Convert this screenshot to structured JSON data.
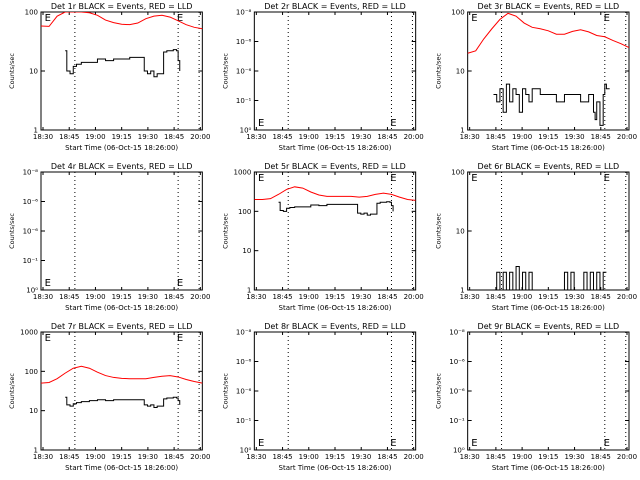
{
  "chart_data": [
    {
      "type": "line",
      "title": "Det 1r BLACK = Events, RED = LLD",
      "xlabel": "Start Time (06-Oct-15 18:26:00)",
      "ylabel": "Counts/sec",
      "y_scale": "log",
      "ylim": [
        1,
        100
      ],
      "y_ticks": [
        "1",
        "10",
        "100"
      ],
      "x_ticks": [
        "18:30",
        "18:45",
        "19:00",
        "19:15",
        "19:30",
        "18:45",
        "20:00"
      ],
      "xlim": [
        0,
        100
      ],
      "vertical_dotted_lines_x": [
        21,
        85,
        98
      ],
      "e_markers": [
        {
          "x": 1,
          "label": "E"
        },
        {
          "x": 83,
          "label": "E"
        }
      ],
      "series": [
        {
          "color": "#ff0000",
          "x": [
            0,
            5,
            10,
            15,
            20,
            25,
            30,
            35,
            40,
            45,
            50,
            55,
            60,
            65,
            70,
            75,
            80,
            85,
            90,
            95,
            100
          ],
          "values": [
            58,
            57,
            85,
            100,
            100,
            100,
            97,
            88,
            73,
            66,
            62,
            61,
            65,
            77,
            85,
            88,
            82,
            71,
            61,
            55,
            52
          ]
        },
        {
          "color": "#000000",
          "x": [
            15,
            16,
            18,
            20,
            22,
            25,
            30,
            35,
            40,
            45,
            50,
            55,
            60,
            63,
            64,
            66,
            68,
            70,
            72,
            74,
            76,
            78,
            80,
            82,
            84,
            85,
            86
          ],
          "values": [
            22,
            10,
            9,
            12,
            13,
            14,
            14,
            16,
            15,
            16,
            16,
            17,
            17,
            17,
            10,
            9,
            10,
            8,
            9,
            9,
            21,
            22,
            22,
            23,
            22,
            15,
            10
          ]
        }
      ]
    },
    {
      "type": "line",
      "title": "Det 2r BLACK = Events, RED = LLD",
      "xlabel": "Start Time (06-Oct-15 18:26:00)",
      "ylabel": "Counts/sec",
      "y_scale": "log",
      "ylim": [
        1,
        1e-08
      ],
      "y_ticks": [
        "10⁰",
        "10⁻¹",
        "10⁻⁶",
        "10⁻⁶",
        "10⁻⁸"
      ],
      "x_ticks": [
        "18:30",
        "18:45",
        "19:00",
        "19:15",
        "19:30",
        "18:45",
        "20:00"
      ],
      "xlim": [
        0,
        100
      ],
      "vertical_dotted_lines_x": [
        21,
        85,
        98
      ],
      "e_markers": [
        {
          "x": 1,
          "label": "E"
        },
        {
          "x": 83,
          "label": "E"
        }
      ],
      "series": []
    },
    {
      "type": "line",
      "title": "Det 3r BLACK = Events, RED = LLD",
      "xlabel": "Start Time (06-Oct-15 18:26:00)",
      "ylabel": "Counts/sec",
      "y_scale": "log",
      "ylim": [
        1,
        100
      ],
      "y_ticks": [
        "1",
        "10",
        "100"
      ],
      "x_ticks": [
        "18:30",
        "18:45",
        "19:00",
        "19:15",
        "19:30",
        "18:45",
        "20:00"
      ],
      "xlim": [
        0,
        100
      ],
      "vertical_dotted_lines_x": [
        21,
        85,
        98
      ],
      "e_markers": [
        {
          "x": 1,
          "label": "E"
        },
        {
          "x": 83,
          "label": "E"
        }
      ],
      "series": [
        {
          "color": "#ff0000",
          "x": [
            0,
            5,
            10,
            15,
            20,
            25,
            30,
            35,
            40,
            45,
            50,
            55,
            60,
            65,
            70,
            75,
            80,
            85,
            90,
            95,
            100
          ],
          "values": [
            20,
            22,
            35,
            52,
            75,
            95,
            85,
            65,
            55,
            52,
            48,
            42,
            42,
            47,
            50,
            46,
            40,
            38,
            33,
            29,
            25
          ]
        },
        {
          "color": "#000000",
          "x": [
            16,
            18,
            20,
            22,
            24,
            26,
            28,
            30,
            32,
            34,
            36,
            38,
            40,
            45,
            50,
            55,
            60,
            65,
            70,
            75,
            78,
            79,
            80,
            82,
            84,
            85,
            86,
            88
          ],
          "values": [
            4,
            3,
            5,
            2,
            6,
            3,
            5,
            4,
            2,
            5,
            4,
            3,
            5,
            4,
            4,
            3,
            4,
            4,
            3,
            4,
            2,
            1.5,
            3,
            1.2,
            4,
            6,
            5,
            5
          ]
        }
      ]
    },
    {
      "type": "line",
      "title": "Det 4r BLACK = Events, RED = LLD",
      "xlabel": "Start Time (06-Oct-15 18:26:00)",
      "ylabel": "Counts/sec",
      "y_scale": "log",
      "ylim": [
        1,
        1e-08
      ],
      "y_ticks": [
        "10⁰",
        "10⁻¹",
        "10⁻⁶",
        "10⁻⁶",
        "10⁻⁸"
      ],
      "x_ticks": [
        "18:30",
        "18:45",
        "19:00",
        "19:15",
        "19:30",
        "18:45",
        "20:00"
      ],
      "xlim": [
        0,
        100
      ],
      "vertical_dotted_lines_x": [
        21,
        85,
        98
      ],
      "e_markers": [
        {
          "x": 1,
          "label": "E"
        },
        {
          "x": 83,
          "label": "E"
        }
      ],
      "series": []
    },
    {
      "type": "line",
      "title": "Det 5r BLACK = Events, RED = LLD",
      "xlabel": "Start Time (06-Oct-15 18:26:00)",
      "ylabel": "Counts/sec",
      "y_scale": "log",
      "ylim": [
        1,
        1000
      ],
      "y_ticks": [
        "1",
        "10",
        "100",
        "1000"
      ],
      "x_ticks": [
        "18:30",
        "18:45",
        "19:00",
        "19:15",
        "19:30",
        "18:45",
        "20:00"
      ],
      "xlim": [
        0,
        100
      ],
      "vertical_dotted_lines_x": [
        21,
        85,
        98
      ],
      "e_markers": [
        {
          "x": 1,
          "label": "E"
        },
        {
          "x": 83,
          "label": "E"
        }
      ],
      "series": [
        {
          "color": "#ff0000",
          "x": [
            0,
            5,
            10,
            15,
            20,
            25,
            30,
            35,
            40,
            45,
            50,
            55,
            60,
            65,
            70,
            75,
            80,
            85,
            90,
            95,
            100
          ],
          "values": [
            200,
            200,
            210,
            270,
            360,
            420,
            390,
            310,
            260,
            240,
            240,
            240,
            240,
            230,
            240,
            270,
            290,
            270,
            230,
            200,
            190
          ]
        },
        {
          "color": "#000000",
          "x": [
            15,
            16,
            18,
            20,
            22,
            25,
            30,
            35,
            40,
            45,
            50,
            55,
            60,
            63,
            64,
            66,
            68,
            70,
            72,
            74,
            76,
            78,
            80,
            82,
            84,
            85,
            86
          ],
          "values": [
            170,
            105,
            100,
            120,
            125,
            130,
            130,
            145,
            140,
            150,
            150,
            150,
            150,
            150,
            90,
            85,
            90,
            80,
            85,
            85,
            160,
            170,
            170,
            175,
            170,
            140,
            100
          ]
        }
      ]
    },
    {
      "type": "line",
      "title": "Det 6r BLACK = Events, RED = LLD",
      "xlabel": "Start Time (06-Oct-15 18:26:00)",
      "ylabel": "Counts/sec",
      "y_scale": "log",
      "ylim": [
        1,
        100
      ],
      "y_ticks": [
        "1",
        "10",
        "100"
      ],
      "x_ticks": [
        "18:30",
        "18:45",
        "19:00",
        "19:15",
        "19:30",
        "18:45",
        "20:00"
      ],
      "xlim": [
        0,
        100
      ],
      "vertical_dotted_lines_x": [
        21,
        85,
        98
      ],
      "e_markers": [
        {
          "x": 1,
          "label": "E"
        },
        {
          "x": 83,
          "label": "E"
        }
      ],
      "series": [
        {
          "color": "#000000",
          "x": [
            16,
            18,
            20,
            22,
            24,
            26,
            28,
            30,
            32,
            34,
            36,
            38,
            40,
            42,
            45,
            50,
            55,
            58,
            60,
            62,
            64,
            66,
            70,
            72,
            74,
            76,
            78,
            80,
            82,
            84,
            86
          ],
          "values": [
            1,
            2,
            1,
            2,
            1,
            2,
            1,
            2.5,
            1,
            2,
            1,
            2,
            1,
            1,
            1,
            1,
            1,
            1,
            2,
            1,
            2,
            1,
            1,
            2,
            1,
            2,
            1,
            2,
            1,
            2,
            2
          ]
        }
      ]
    },
    {
      "type": "line",
      "title": "Det 7r BLACK = Events, RED = LLD",
      "xlabel": "Start Time (06-Oct-15 18:26:00)",
      "ylabel": "Counts/sec",
      "y_scale": "log",
      "ylim": [
        1,
        1000
      ],
      "y_ticks": [
        "1",
        "10",
        "100",
        "1000"
      ],
      "x_ticks": [
        "18:30",
        "18:45",
        "19:00",
        "19:15",
        "19:30",
        "18:45",
        "20:00"
      ],
      "xlim": [
        0,
        100
      ],
      "vertical_dotted_lines_x": [
        21,
        85,
        98
      ],
      "e_markers": [
        {
          "x": 1,
          "label": "E"
        },
        {
          "x": 83,
          "label": "E"
        }
      ],
      "series": [
        {
          "color": "#ff0000",
          "x": [
            0,
            5,
            10,
            15,
            20,
            25,
            30,
            35,
            40,
            45,
            50,
            55,
            60,
            65,
            70,
            75,
            80,
            85,
            90,
            95,
            100
          ],
          "values": [
            50,
            52,
            65,
            90,
            120,
            135,
            120,
            95,
            78,
            70,
            66,
            65,
            65,
            65,
            70,
            75,
            78,
            72,
            62,
            55,
            50
          ]
        },
        {
          "color": "#000000",
          "x": [
            15,
            16,
            18,
            20,
            22,
            25,
            30,
            35,
            40,
            45,
            50,
            55,
            60,
            63,
            64,
            66,
            68,
            70,
            72,
            74,
            76,
            78,
            80,
            82,
            84,
            85,
            86
          ],
          "values": [
            22,
            14,
            13,
            15,
            16,
            17,
            18,
            19,
            18,
            19,
            19,
            19,
            19,
            19,
            14,
            13,
            14,
            12,
            13,
            13,
            20,
            21,
            21,
            22,
            21,
            18,
            14
          ]
        }
      ]
    },
    {
      "type": "line",
      "title": "Det 8r BLACK = Events, RED = LLD",
      "xlabel": "Start Time (06-Oct-15 18:26:00)",
      "ylabel": "Counts/sec",
      "y_scale": "log",
      "ylim": [
        1,
        1e-08
      ],
      "y_ticks": [
        "10⁰",
        "10⁻¹",
        "10⁻⁶",
        "10⁻⁶",
        "10⁻⁸"
      ],
      "x_ticks": [
        "18:30",
        "18:45",
        "19:00",
        "19:15",
        "19:30",
        "18:45",
        "20:00"
      ],
      "xlim": [
        0,
        100
      ],
      "vertical_dotted_lines_x": [
        21,
        85,
        98
      ],
      "e_markers": [
        {
          "x": 1,
          "label": "E"
        },
        {
          "x": 83,
          "label": "E"
        }
      ],
      "series": []
    },
    {
      "type": "line",
      "title": "Det 9r BLACK = Events, RED = LLD",
      "xlabel": "Start Time (06-Oct-15 18:26:00)",
      "ylabel": "Counts/sec",
      "y_scale": "log",
      "ylim": [
        1,
        1e-08
      ],
      "y_ticks": [
        "10⁰",
        "10⁻¹",
        "10⁻⁶",
        "10⁻⁶",
        "10⁻⁸"
      ],
      "x_ticks": [
        "18:30",
        "18:45",
        "19:00",
        "19:15",
        "19:30",
        "18:45",
        "20:00"
      ],
      "xlim": [
        0,
        100
      ],
      "vertical_dotted_lines_x": [
        21,
        85,
        98
      ],
      "e_markers": [
        {
          "x": 1,
          "label": "E"
        },
        {
          "x": 83,
          "label": "E"
        }
      ],
      "series": []
    }
  ]
}
